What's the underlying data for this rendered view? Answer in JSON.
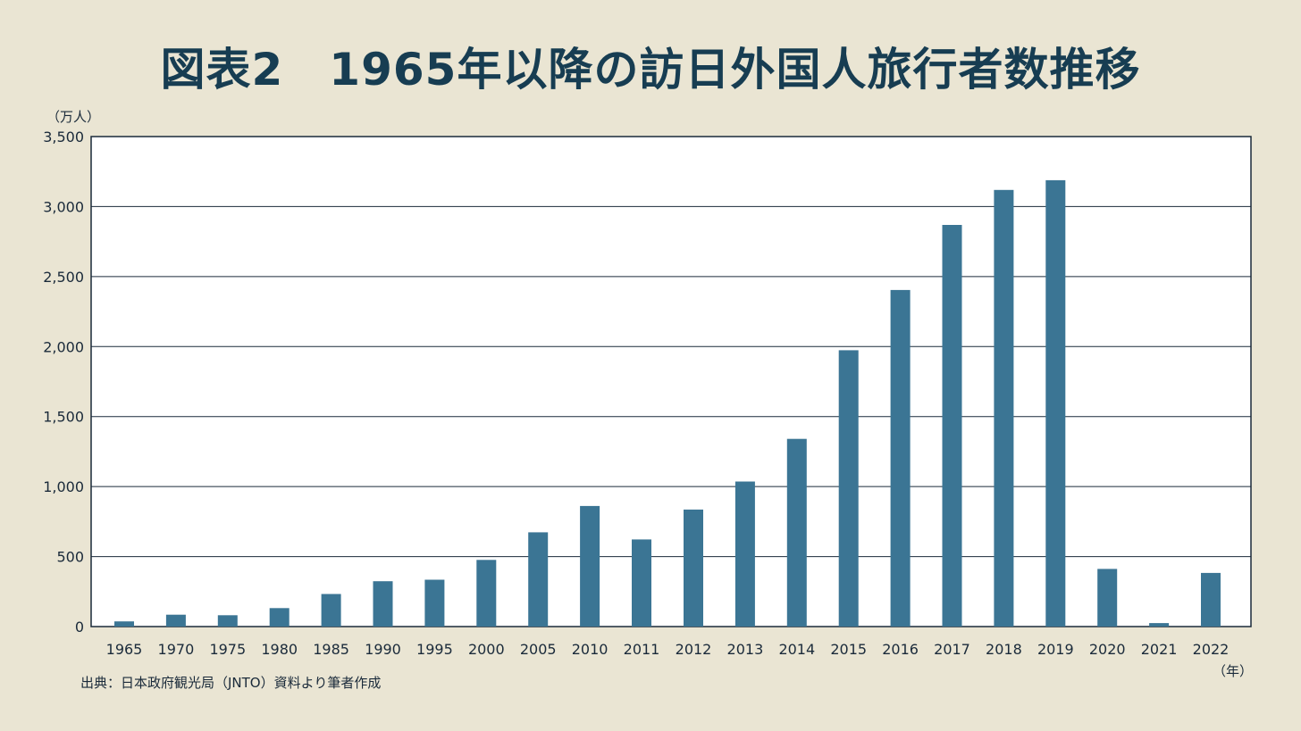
{
  "header": {
    "title": "図表2　1965年以降の訪日外国人旅行者数推移"
  },
  "footer": {
    "source": "出典：日本政府観光局（JNTO）資料より筆者作成"
  },
  "colors": {
    "bar": "#3b7594",
    "background": "#eae5d3",
    "title": "#173d52"
  },
  "chart_data": {
    "type": "bar",
    "title": "図表2　1965年以降の訪日外国人旅行者数推移",
    "xlabel": "（年）",
    "ylabel": "（万人）",
    "ylim": [
      0,
      3500
    ],
    "yticks": [
      "0",
      "500",
      "1,000",
      "1,500",
      "2,000",
      "2,500",
      "3,000",
      "3,500"
    ],
    "ytick_values": [
      0,
      500,
      1000,
      1500,
      2000,
      2500,
      3000,
      3500
    ],
    "grid": true,
    "categories": [
      "1965",
      "1970",
      "1975",
      "1980",
      "1985",
      "1990",
      "1995",
      "2000",
      "2005",
      "2010",
      "2011",
      "2012",
      "2013",
      "2014",
      "2015",
      "2016",
      "2017",
      "2018",
      "2019",
      "2020",
      "2021",
      "2022"
    ],
    "values": [
      37,
      85,
      81,
      132,
      233,
      324,
      335,
      476,
      673,
      861,
      622,
      836,
      1036,
      1341,
      1974,
      2404,
      2869,
      3119,
      3188,
      412,
      25,
      383
    ]
  }
}
